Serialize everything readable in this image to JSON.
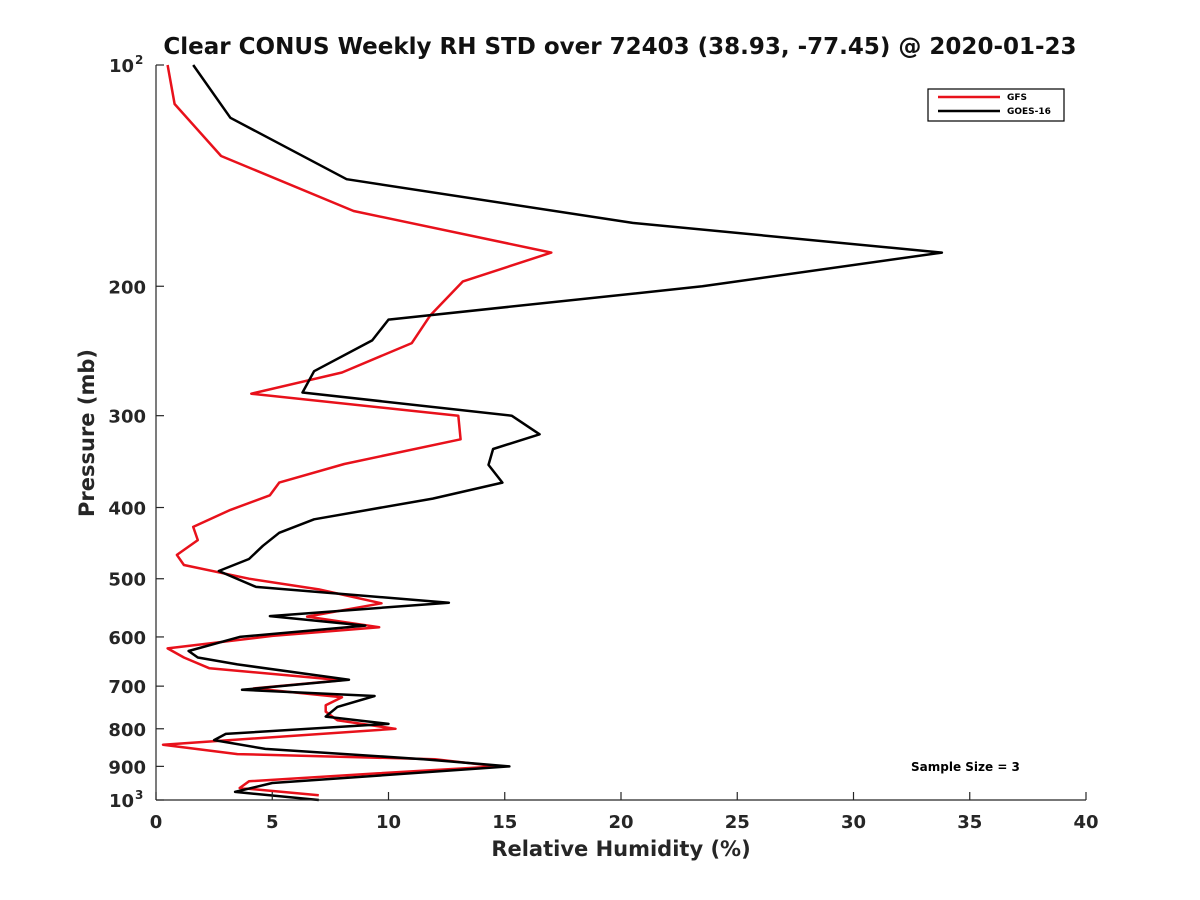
{
  "chart_data": {
    "type": "line",
    "title": "Clear CONUS Weekly RH STD over 72403 (38.93, -77.45) @ 2020-01-23",
    "xlabel": "Relative Humidity (%)",
    "ylabel": "Pressure (mb)",
    "xlim": [
      0,
      40
    ],
    "ylim": [
      100,
      1000
    ],
    "yscale": "log",
    "yreversed": true,
    "x_ticks": [
      "0",
      "5",
      "10",
      "15",
      "20",
      "25",
      "30",
      "35",
      "40"
    ],
    "y_ticks": [
      {
        "value": 100,
        "base": "10",
        "exp": "2"
      },
      {
        "value": 200,
        "label": "200"
      },
      {
        "value": 300,
        "label": "300"
      },
      {
        "value": 400,
        "label": "400"
      },
      {
        "value": 500,
        "label": "500"
      },
      {
        "value": 600,
        "label": "600"
      },
      {
        "value": 700,
        "label": "700"
      },
      {
        "value": 800,
        "label": "800"
      },
      {
        "value": 900,
        "label": "900"
      },
      {
        "value": 1000,
        "base": "10",
        "exp": "3"
      }
    ],
    "grid": false,
    "legend_position": "top-right",
    "annotation": "Sample Size = 3",
    "series": [
      {
        "name": "GFS",
        "color": "#e8111b",
        "points": [
          [
            0.5,
            100
          ],
          [
            0.8,
            113
          ],
          [
            2.8,
            133
          ],
          [
            8.5,
            158
          ],
          [
            17.0,
            180
          ],
          [
            13.2,
            197
          ],
          [
            11.8,
            219
          ],
          [
            11.0,
            239
          ],
          [
            8.0,
            262
          ],
          [
            4.1,
            280
          ],
          [
            13.0,
            300
          ],
          [
            13.1,
            323
          ],
          [
            8.1,
            349
          ],
          [
            5.3,
            370
          ],
          [
            4.9,
            385
          ],
          [
            3.2,
            403
          ],
          [
            1.6,
            425
          ],
          [
            1.8,
            443
          ],
          [
            0.9,
            464
          ],
          [
            1.2,
            479
          ],
          [
            4.0,
            500
          ],
          [
            7.0,
            517
          ],
          [
            9.7,
            540
          ],
          [
            6.5,
            563
          ],
          [
            9.6,
            582
          ],
          [
            5.0,
            598
          ],
          [
            0.5,
            622
          ],
          [
            1.2,
            640
          ],
          [
            2.3,
            662
          ],
          [
            8.0,
            687
          ],
          [
            4.2,
            705
          ],
          [
            8.0,
            725
          ],
          [
            7.3,
            743
          ],
          [
            7.3,
            758
          ],
          [
            7.8,
            779
          ],
          [
            10.3,
            800
          ],
          [
            0.3,
            841
          ],
          [
            3.5,
            866
          ],
          [
            12.0,
            880
          ],
          [
            14.7,
            900
          ],
          [
            9.5,
            920
          ],
          [
            4.0,
            943
          ],
          [
            3.6,
            963
          ],
          [
            7.0,
            985
          ]
        ]
      },
      {
        "name": "GOES-16",
        "color": "#000000",
        "points": [
          [
            1.6,
            100
          ],
          [
            3.2,
            118
          ],
          [
            8.2,
            143
          ],
          [
            20.5,
            164
          ],
          [
            33.8,
            180
          ],
          [
            23.5,
            200
          ],
          [
            10.0,
            222
          ],
          [
            9.3,
            237
          ],
          [
            6.8,
            261
          ],
          [
            6.3,
            279
          ],
          [
            15.3,
            300
          ],
          [
            16.5,
            318
          ],
          [
            14.5,
            333
          ],
          [
            14.3,
            350
          ],
          [
            14.9,
            370
          ],
          [
            11.9,
            389
          ],
          [
            6.8,
            415
          ],
          [
            5.3,
            433
          ],
          [
            4.6,
            451
          ],
          [
            4.0,
            470
          ],
          [
            2.7,
            488
          ],
          [
            4.3,
            513
          ],
          [
            12.6,
            539
          ],
          [
            4.9,
            562
          ],
          [
            9.0,
            579
          ],
          [
            3.6,
            600
          ],
          [
            1.4,
            627
          ],
          [
            1.8,
            640
          ],
          [
            3.5,
            654
          ],
          [
            8.3,
            686
          ],
          [
            3.7,
            708
          ],
          [
            9.4,
            722
          ],
          [
            7.8,
            747
          ],
          [
            7.3,
            770
          ],
          [
            10.0,
            788
          ],
          [
            3.0,
            813
          ],
          [
            2.5,
            829
          ],
          [
            4.7,
            852
          ],
          [
            11.5,
            880
          ],
          [
            15.2,
            900
          ],
          [
            5.0,
            948
          ],
          [
            3.4,
            975
          ],
          [
            7.0,
            1000
          ]
        ]
      }
    ]
  }
}
